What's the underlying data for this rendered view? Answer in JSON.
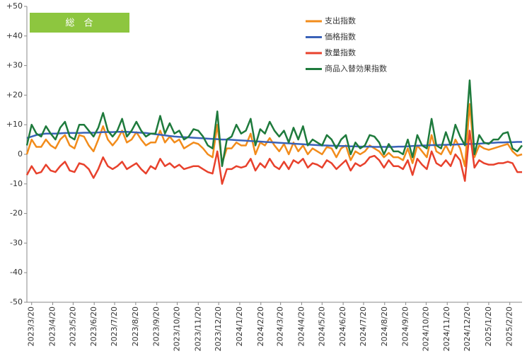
{
  "chart_data": {
    "type": "line",
    "title": "総　合",
    "x": [
      "2023/3/13",
      "2023/3/20",
      "2023/3/27",
      "2023/4/3",
      "2023/4/10",
      "2023/4/17",
      "2023/4/24",
      "2023/5/1",
      "2023/5/8",
      "2023/5/15",
      "2023/5/22",
      "2023/5/29",
      "2023/6/5",
      "2023/6/12",
      "2023/6/19",
      "2023/6/26",
      "2023/7/3",
      "2023/7/10",
      "2023/7/17",
      "2023/7/24",
      "2023/7/31",
      "2023/8/7",
      "2023/8/14",
      "2023/8/21",
      "2023/8/28",
      "2023/9/4",
      "2023/9/11",
      "2023/9/18",
      "2023/9/25",
      "2023/10/2",
      "2023/10/9",
      "2023/10/16",
      "2023/10/23",
      "2023/10/30",
      "2023/11/6",
      "2023/11/13",
      "2023/11/20",
      "2023/11/27",
      "2023/12/4",
      "2023/12/11",
      "2023/12/18",
      "2023/12/25",
      "2024/1/1",
      "2024/1/8",
      "2024/1/15",
      "2024/1/22",
      "2024/1/29",
      "2024/2/5",
      "2024/2/12",
      "2024/2/19",
      "2024/2/26",
      "2024/3/4",
      "2024/3/11",
      "2024/3/18",
      "2024/3/25",
      "2024/4/1",
      "2024/4/8",
      "2024/4/15",
      "2024/4/22",
      "2024/4/29",
      "2024/5/6",
      "2024/5/13",
      "2024/5/20",
      "2024/5/27",
      "2024/6/3",
      "2024/6/10",
      "2024/6/17",
      "2024/6/24",
      "2024/7/1",
      "2024/7/8",
      "2024/7/15",
      "2024/7/22",
      "2024/7/29",
      "2024/8/5",
      "2024/8/12",
      "2024/8/19",
      "2024/8/26",
      "2024/9/2",
      "2024/9/9",
      "2024/9/16",
      "2024/9/23",
      "2024/9/30",
      "2024/10/7",
      "2024/10/14",
      "2024/10/21",
      "2024/10/28",
      "2024/11/4",
      "2024/11/11",
      "2024/11/18",
      "2024/11/25",
      "2024/12/2",
      "2024/12/9",
      "2024/12/16",
      "2024/12/23",
      "2024/12/30",
      "2025/1/6",
      "2025/1/13",
      "2025/1/20",
      "2025/1/27",
      "2025/2/3",
      "2025/2/10",
      "2025/2/17",
      "2025/2/24",
      "2025/3/3",
      "2025/3/10"
    ],
    "series": [
      {
        "name": "支出指数",
        "color": "#f28c1b",
        "values": [
          0,
          5,
          2.5,
          2.5,
          5,
          3,
          2,
          5,
          6.5,
          3,
          2,
          6.5,
          6,
          3,
          1,
          5,
          9.5,
          5,
          3,
          5,
          8,
          4,
          5,
          7.5,
          5,
          3,
          4,
          4,
          8,
          4,
          6,
          4,
          5,
          2,
          3,
          4,
          3.5,
          2,
          0,
          -1,
          10,
          -3,
          2,
          2,
          4,
          3,
          3,
          7,
          0,
          4,
          3,
          5.5,
          3,
          1,
          3.5,
          0,
          4,
          1,
          3,
          0,
          2,
          1,
          0,
          2.5,
          2,
          -1,
          2,
          3,
          -2,
          1,
          0,
          1,
          3,
          2,
          1,
          -1,
          0.5,
          -1,
          -1,
          -2,
          2,
          -3,
          3,
          1,
          -1,
          6.5,
          1,
          0,
          3,
          0,
          5,
          2,
          -4,
          17,
          -1,
          3,
          2,
          1.5,
          2,
          2.5,
          3,
          3.5,
          1,
          -0.5,
          0
        ]
      },
      {
        "name": "価格指数",
        "color": "#3a62b8",
        "values": [
          5.5,
          6,
          6.5,
          6.8,
          7,
          7,
          7,
          7.1,
          7.2,
          7.2,
          7.2,
          7.2,
          7.3,
          7.3,
          7.3,
          7.4,
          7.5,
          7.5,
          7.5,
          7.6,
          7.6,
          7.6,
          7.5,
          7.4,
          7.3,
          7.2,
          7,
          6.8,
          6.6,
          6.4,
          6.2,
          6,
          5.9,
          5.8,
          5.7,
          5.6,
          5.5,
          5.4,
          5.3,
          5.2,
          5.1,
          5,
          5,
          4.9,
          4.8,
          4.7,
          4.6,
          4.5,
          4.4,
          4.3,
          4.2,
          4.1,
          4,
          3.9,
          3.8,
          3.7,
          3.6,
          3.5,
          3.4,
          3.3,
          3.2,
          3.1,
          3,
          3,
          2.9,
          2.9,
          2.8,
          2.8,
          2.7,
          2.7,
          2.6,
          2.6,
          2.6,
          2.5,
          2.5,
          2.5,
          2.5,
          2.5,
          2.6,
          2.6,
          2.7,
          2.8,
          2.9,
          3,
          3,
          3.1,
          3.1,
          3.2,
          3.2,
          3.3,
          3.3,
          3.4,
          3.4,
          3.5,
          3.5,
          3.6,
          3.7,
          3.8,
          3.9,
          4,
          4,
          4.1,
          4.1,
          4.2,
          4.2
        ]
      },
      {
        "name": "数量指数",
        "color": "#e8412c",
        "values": [
          -7,
          -4,
          -6.5,
          -6,
          -3.5,
          -5.5,
          -6,
          -4,
          -2.5,
          -5.5,
          -6,
          -3,
          -3.5,
          -5,
          -8,
          -5,
          -1,
          -4,
          -5,
          -4,
          -2.5,
          -5,
          -4,
          -3,
          -5,
          -6.5,
          -4,
          -5,
          -1.5,
          -4,
          -3,
          -4.5,
          -3.5,
          -5,
          -4.5,
          -4,
          -4,
          -5,
          -6,
          -6.5,
          1,
          -10,
          -5,
          -5,
          -4,
          -4.5,
          -4,
          -1.5,
          -5.5,
          -3,
          -4.5,
          -1.5,
          -4,
          -5,
          -2.5,
          -5,
          -2,
          -3,
          -1.5,
          -4.5,
          -3,
          -3.5,
          -4.5,
          -2,
          -3,
          -5,
          -3.5,
          -2,
          -5.5,
          -3,
          -4,
          -3,
          -1,
          -0.5,
          -2,
          -4.5,
          -2,
          -4,
          -4,
          -5,
          -2,
          -7,
          -1.5,
          -3.5,
          -5,
          1,
          -3,
          -4,
          -2,
          -4,
          0,
          -2,
          -9,
          8,
          -4.5,
          -2,
          -3,
          -3.5,
          -3.5,
          -3,
          -3,
          -2.5,
          -3,
          -6,
          -6
        ]
      },
      {
        "name": "商品入替効果指数",
        "color": "#1e7a3c",
        "values": [
          3,
          10,
          7,
          6,
          9.5,
          7,
          5,
          9,
          11,
          6,
          5,
          10,
          10,
          8,
          6,
          9,
          14,
          8,
          6,
          8,
          12,
          6,
          8,
          11,
          8,
          6,
          7,
          7,
          13,
          7,
          10.5,
          7,
          8,
          5,
          6,
          8.5,
          8,
          6,
          3,
          2,
          14.5,
          -4,
          5,
          6,
          10,
          7,
          8,
          12,
          3,
          8.5,
          7,
          11,
          8,
          6,
          8,
          4,
          9,
          5,
          9.5,
          3,
          5,
          4,
          3,
          6.5,
          5,
          2,
          5,
          6.5,
          0,
          4,
          2,
          3,
          6.5,
          6,
          4,
          0,
          3.5,
          1,
          1,
          0,
          5,
          -1,
          6.5,
          3,
          2,
          12,
          3,
          2,
          7.5,
          3,
          10,
          6,
          3,
          25,
          0,
          6.5,
          4,
          3.5,
          5,
          5,
          7,
          7.5,
          2,
          1,
          3
        ]
      }
    ],
    "xlim": [
      "2023/3/13",
      "2025/3/10"
    ],
    "xticks": [
      "2023/3/20",
      "2023/4/20",
      "2023/5/20",
      "2023/6/20",
      "2023/7/20",
      "2023/8/20",
      "2023/9/20",
      "2023/10/20",
      "2023/11/20",
      "2023/12/20",
      "2024/1/20",
      "2024/2/20",
      "2024/3/20",
      "2024/4/20",
      "2024/5/20",
      "2024/6/20",
      "2024/7/20",
      "2024/8/20",
      "2024/9/20",
      "2024/10/20",
      "2024/11/20",
      "2024/12/20",
      "2025/1/20",
      "2025/2/20"
    ],
    "ylim": [
      -50,
      50
    ],
    "yticks": [
      {
        "value": 50,
        "label": "+50"
      },
      {
        "value": 40,
        "label": "+40"
      },
      {
        "value": 30,
        "label": "+30"
      },
      {
        "value": 20,
        "label": "+20"
      },
      {
        "value": 10,
        "label": "+10"
      },
      0,
      -10,
      -20,
      -30,
      -40,
      -50
    ],
    "grid": false,
    "legend": "top-right"
  }
}
